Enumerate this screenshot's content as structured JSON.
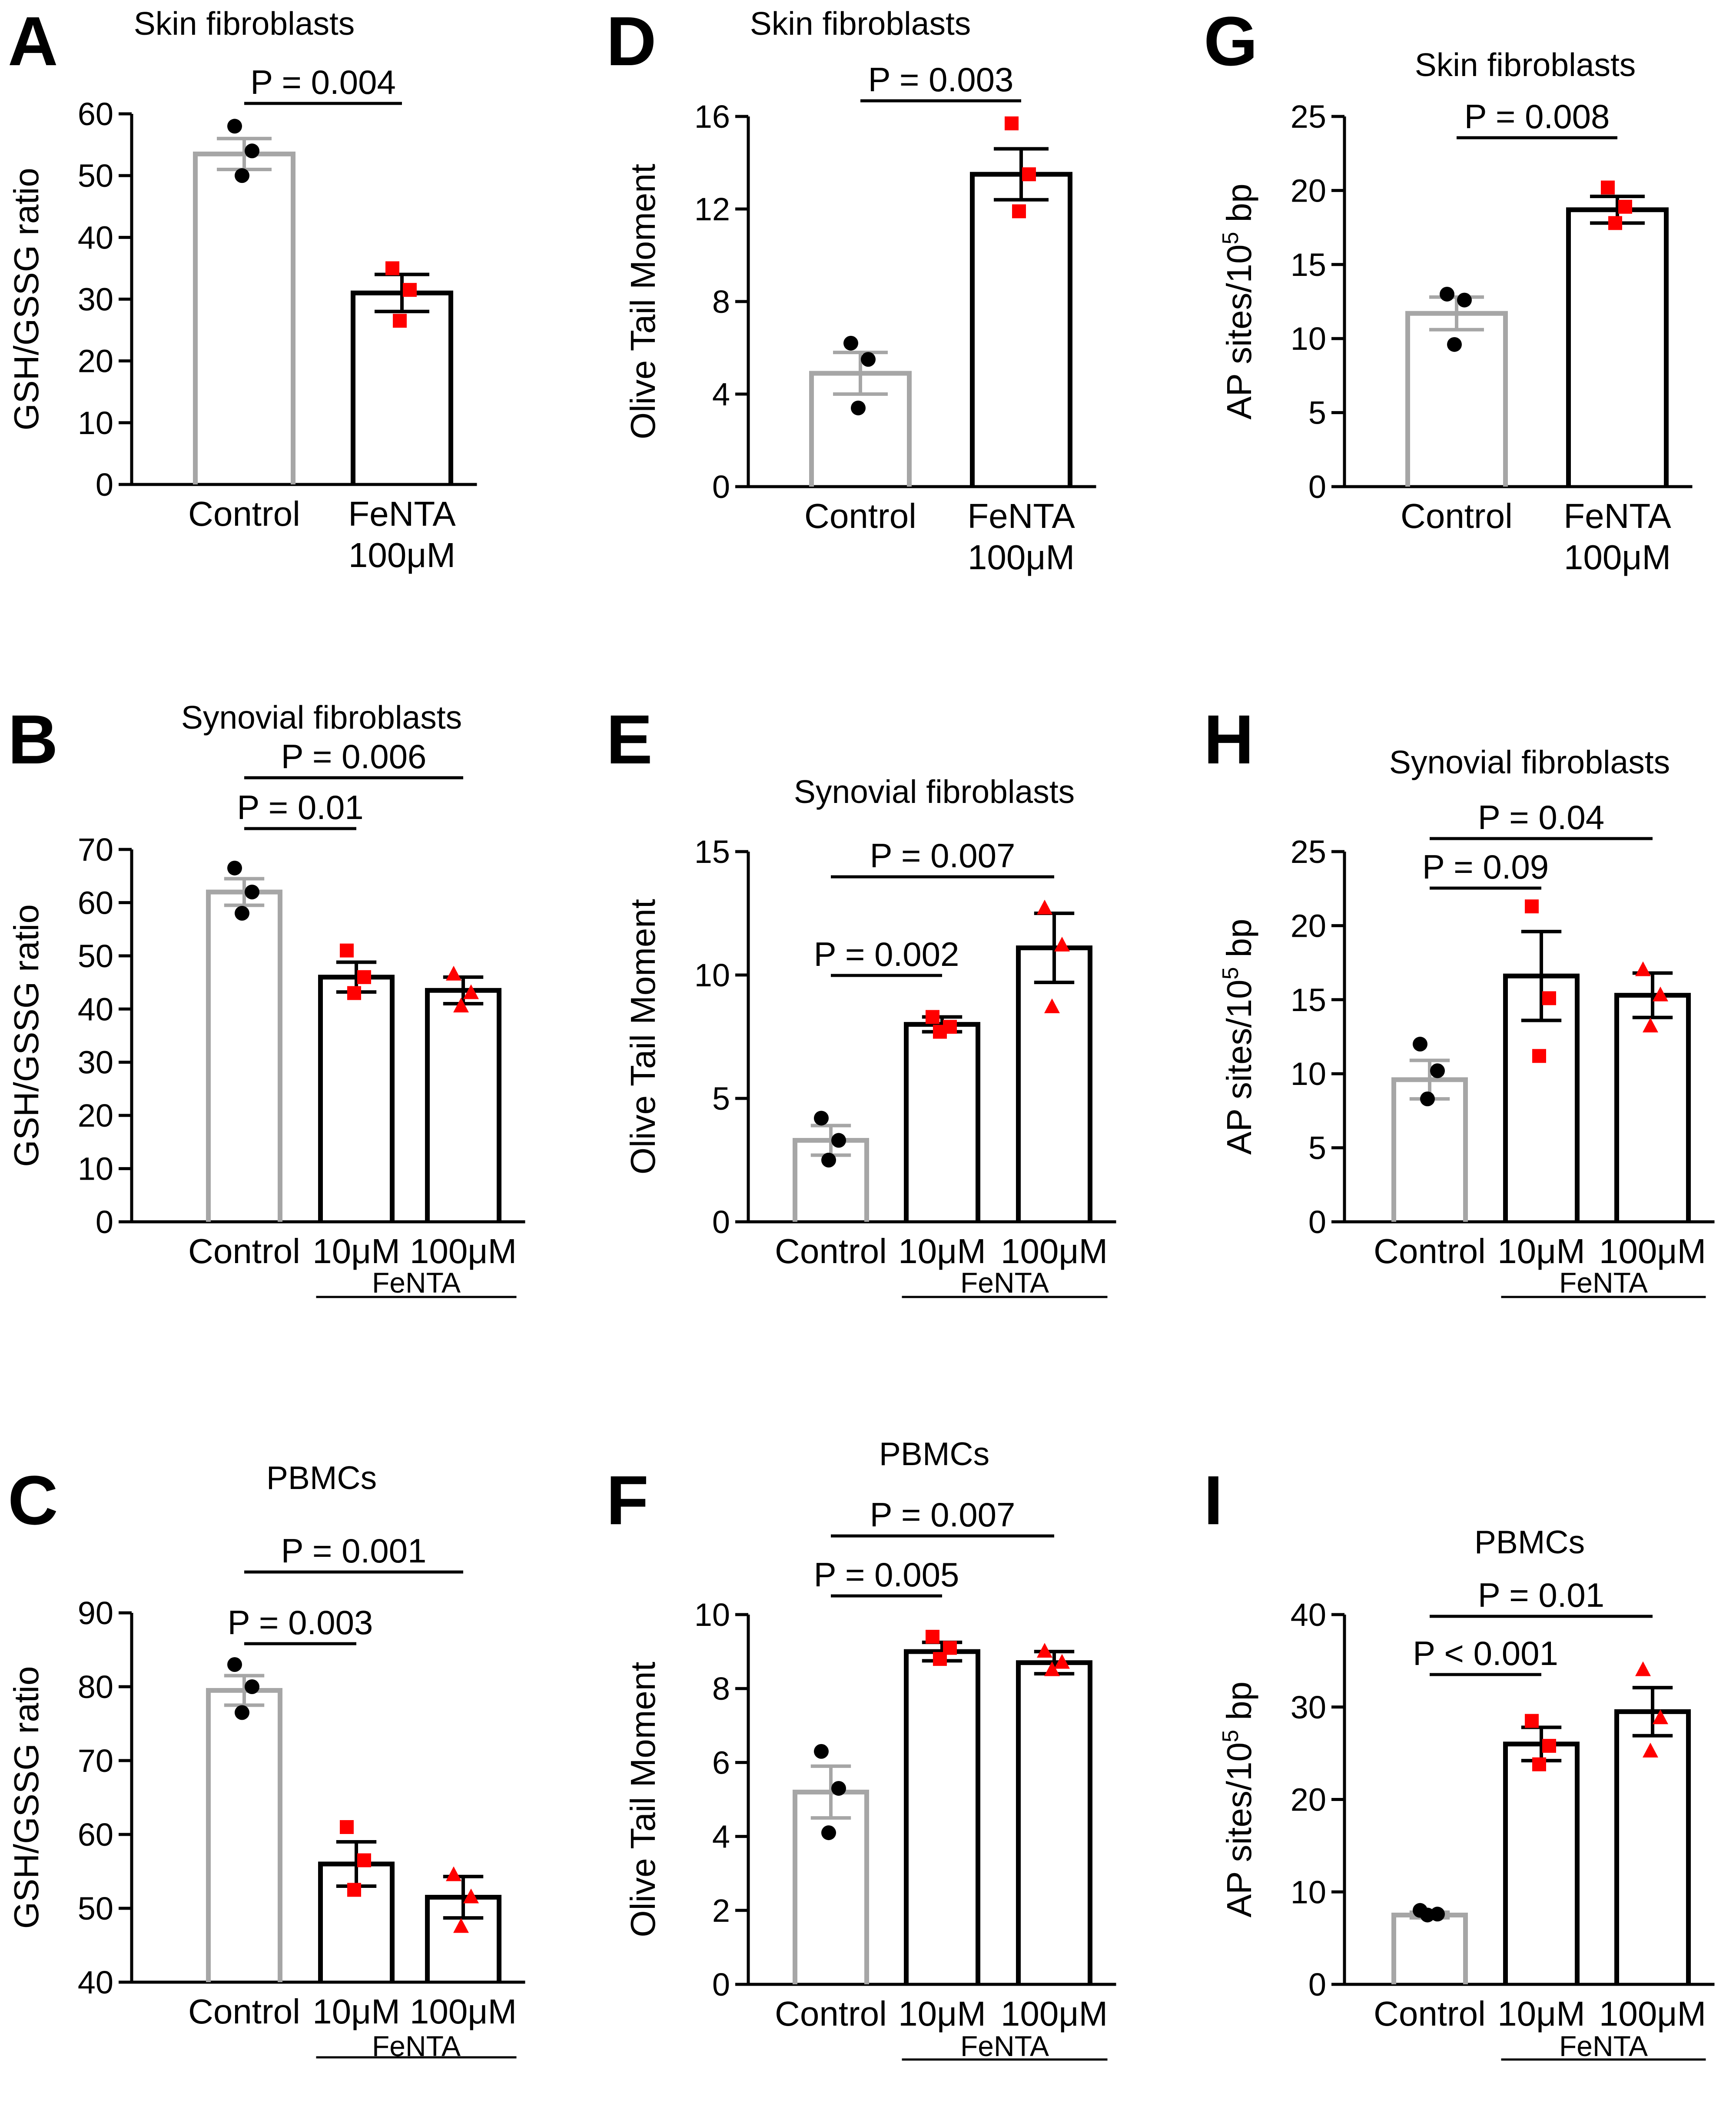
{
  "figure": {
    "colors": {
      "control_bar": "#a6a6a6",
      "treated_bar": "#000000",
      "control_point": "#000000",
      "treated_point": "#ff0000"
    }
  },
  "chart_data": [
    {
      "id": "A",
      "letter": "A",
      "type": "bar",
      "title": "Skin fibroblasts",
      "ylabel": "GSH/GSSG ratio",
      "ylim": [
        0,
        60
      ],
      "yticks": [
        "0",
        "10",
        "20",
        "30",
        "40",
        "50",
        "60"
      ],
      "ytick_values": [
        0,
        10,
        20,
        30,
        40,
        50,
        60
      ],
      "categories": [
        [
          "Control"
        ],
        [
          "FeNTA",
          "100μM"
        ]
      ],
      "means": [
        53.5,
        31
      ],
      "sem": [
        2.5,
        3
      ],
      "points": [
        [
          58,
          54,
          50
        ],
        [
          35,
          31.5,
          26.5
        ]
      ],
      "markers": [
        "circle",
        "square"
      ],
      "pvalues": [
        {
          "label": "P = 0.004",
          "from": 0,
          "to": 1
        }
      ]
    },
    {
      "id": "B",
      "letter": "B",
      "type": "bar",
      "title": "Synovial fibroblasts",
      "ylabel": "GSH/GSSG ratio",
      "ylim": [
        0,
        70
      ],
      "yticks": [
        "0",
        "10",
        "20",
        "30",
        "40",
        "50",
        "60",
        "70"
      ],
      "ytick_values": [
        0,
        10,
        20,
        30,
        40,
        50,
        60,
        70
      ],
      "categories": [
        [
          "Control"
        ],
        [
          "10μM"
        ],
        [
          "100μM"
        ]
      ],
      "means": [
        62,
        46,
        43.5
      ],
      "sem": [
        2.5,
        2.8,
        2.5
      ],
      "points": [
        [
          66.5,
          62,
          58
        ],
        [
          51,
          46,
          43
        ],
        [
          46.5,
          43,
          40.5
        ]
      ],
      "markers": [
        "circle",
        "square",
        "triangle"
      ],
      "pvalues": [
        {
          "label": "P = 0.01",
          "from": 0,
          "to": 1
        },
        {
          "label": "P = 0.006",
          "from": 0,
          "to": 2
        }
      ],
      "group_label": "FeNTA"
    },
    {
      "id": "C",
      "letter": "C",
      "type": "bar",
      "title": "PBMCs",
      "ylabel": "GSH/GSSG ratio",
      "ylim": [
        40,
        90
      ],
      "yticks": [
        "40",
        "50",
        "60",
        "70",
        "80",
        "90"
      ],
      "ytick_values": [
        40,
        50,
        60,
        70,
        80,
        90
      ],
      "categories": [
        [
          "Control"
        ],
        [
          "10μM"
        ],
        [
          "100μM"
        ]
      ],
      "means": [
        79.5,
        56,
        51.5
      ],
      "sem": [
        2,
        3,
        2.8
      ],
      "points": [
        [
          83,
          80,
          76.5
        ],
        [
          61,
          56.5,
          52.5
        ],
        [
          54.5,
          51.5,
          47.5
        ]
      ],
      "markers": [
        "circle",
        "square",
        "triangle"
      ],
      "pvalues": [
        {
          "label": "P = 0.003",
          "from": 0,
          "to": 1
        },
        {
          "label": "P = 0.001",
          "from": 0,
          "to": 2
        }
      ],
      "group_label": "FeNTA"
    },
    {
      "id": "D",
      "letter": "D",
      "type": "bar",
      "title": "Skin fibroblasts",
      "ylabel": "Olive Tail Moment",
      "ylim": [
        0,
        16
      ],
      "yticks": [
        "0",
        "4",
        "8",
        "12",
        "16"
      ],
      "ytick_values": [
        0,
        4,
        8,
        12,
        16
      ],
      "categories": [
        [
          "Control"
        ],
        [
          "FeNTA",
          "100μM"
        ]
      ],
      "means": [
        4.9,
        13.5
      ],
      "sem": [
        0.9,
        1.1
      ],
      "points": [
        [
          6.2,
          5.5,
          3.4
        ],
        [
          15.7,
          13.5,
          11.9
        ]
      ],
      "markers": [
        "circle",
        "square"
      ],
      "pvalues": [
        {
          "label": "P = 0.003",
          "from": 0,
          "to": 1
        }
      ]
    },
    {
      "id": "E",
      "letter": "E",
      "type": "bar",
      "title": "Synovial fibroblasts",
      "ylabel": "Olive Tail Moment",
      "ylim": [
        0,
        15
      ],
      "yticks": [
        "0",
        "5",
        "10",
        "15"
      ],
      "ytick_values": [
        0,
        5,
        10,
        15
      ],
      "categories": [
        [
          "Control"
        ],
        [
          "10μM"
        ],
        [
          "100μM"
        ]
      ],
      "means": [
        3.3,
        8,
        11.1
      ],
      "sem": [
        0.6,
        0.3,
        1.4
      ],
      "points": [
        [
          4.2,
          3.3,
          2.5
        ],
        [
          8.3,
          7.9,
          7.7
        ],
        [
          12.7,
          11.2,
          8.7
        ]
      ],
      "markers": [
        "circle",
        "square",
        "triangle"
      ],
      "pvalues": [
        {
          "label": "P = 0.002",
          "from": 0,
          "to": 1
        },
        {
          "label": "P = 0.007",
          "from": 0,
          "to": 2
        }
      ],
      "group_label": "FeNTA"
    },
    {
      "id": "F",
      "letter": "F",
      "type": "bar",
      "title": "PBMCs",
      "ylabel": "Olive Tail Moment",
      "ylim": [
        0,
        10
      ],
      "yticks": [
        "0",
        "2",
        "4",
        "6",
        "8",
        "10"
      ],
      "ytick_values": [
        0,
        2,
        4,
        6,
        8,
        10
      ],
      "categories": [
        [
          "Control"
        ],
        [
          "10μM"
        ],
        [
          "100μM"
        ]
      ],
      "means": [
        5.2,
        9,
        8.7
      ],
      "sem": [
        0.7,
        0.25,
        0.3
      ],
      "points": [
        [
          6.3,
          5.3,
          4.1
        ],
        [
          9.4,
          9.1,
          8.8
        ],
        [
          9,
          8.7,
          8.5
        ]
      ],
      "markers": [
        "circle",
        "square",
        "triangle"
      ],
      "pvalues": [
        {
          "label": "P = 0.005",
          "from": 0,
          "to": 1
        },
        {
          "label": "P = 0.007",
          "from": 0,
          "to": 2
        }
      ],
      "group_label": "FeNTA"
    },
    {
      "id": "G",
      "letter": "G",
      "type": "bar",
      "title": "Skin fibroblasts",
      "ylabel": "AP sites/10",
      "ylabel_sup": "5",
      "ylabel_suffix": " bp",
      "ylim": [
        0,
        25
      ],
      "yticks": [
        "0",
        "5",
        "10",
        "15",
        "20",
        "25"
      ],
      "ytick_values": [
        0,
        5,
        10,
        15,
        20,
        25
      ],
      "categories": [
        [
          "Control"
        ],
        [
          "FeNTA",
          "100μM"
        ]
      ],
      "means": [
        11.7,
        18.7
      ],
      "sem": [
        1.1,
        0.9
      ],
      "points": [
        [
          13,
          12.6,
          9.6
        ],
        [
          20.2,
          18.9,
          17.8
        ]
      ],
      "markers": [
        "circle",
        "square"
      ],
      "pvalues": [
        {
          "label": "P = 0.008",
          "from": 0,
          "to": 1
        }
      ]
    },
    {
      "id": "H",
      "letter": "H",
      "type": "bar",
      "title": "Synovial fibroblasts",
      "ylabel": "AP sites/10",
      "ylabel_sup": "5",
      "ylabel_suffix": " bp",
      "ylim": [
        0,
        25
      ],
      "yticks": [
        "0",
        "5",
        "10",
        "15",
        "20",
        "25"
      ],
      "ytick_values": [
        0,
        5,
        10,
        15,
        20,
        25
      ],
      "categories": [
        [
          "Control"
        ],
        [
          "10μM"
        ],
        [
          "100μM"
        ]
      ],
      "means": [
        9.6,
        16.6,
        15.3
      ],
      "sem": [
        1.3,
        3,
        1.5
      ],
      "points": [
        [
          12,
          10.2,
          8.3
        ],
        [
          21.3,
          15.1,
          11.2
        ],
        [
          17,
          15.3,
          13.2
        ]
      ],
      "markers": [
        "circle",
        "square",
        "triangle"
      ],
      "pvalues": [
        {
          "label": "P = 0.09",
          "from": 0,
          "to": 1
        },
        {
          "label": "P = 0.04",
          "from": 0,
          "to": 2
        }
      ],
      "group_label": "FeNTA"
    },
    {
      "id": "I",
      "letter": "I",
      "type": "bar",
      "title": "PBMCs",
      "ylabel": "AP sites/10",
      "ylabel_sup": "5",
      "ylabel_suffix": " bp",
      "ylim": [
        0,
        40
      ],
      "yticks": [
        "0",
        "10",
        "20",
        "30",
        "40"
      ],
      "ytick_values": [
        0,
        10,
        20,
        30,
        40
      ],
      "categories": [
        [
          "Control"
        ],
        [
          "10μM"
        ],
        [
          "100μM"
        ]
      ],
      "means": [
        7.5,
        26,
        29.5
      ],
      "sem": [
        0.3,
        1.8,
        2.6
      ],
      "points": [
        [
          8,
          7.6,
          7.5
        ],
        [
          28.5,
          25.8,
          23.8
        ],
        [
          34,
          28.8,
          25.2
        ]
      ],
      "markers": [
        "circle",
        "square",
        "triangle"
      ],
      "pvalues": [
        {
          "label": "P < 0.001",
          "from": 0,
          "to": 1
        },
        {
          "label": "P = 0.01",
          "from": 0,
          "to": 2
        }
      ],
      "group_label": "FeNTA"
    }
  ]
}
